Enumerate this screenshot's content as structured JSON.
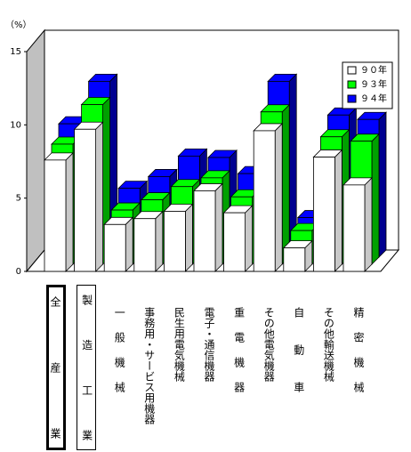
{
  "chart_data": {
    "type": "bar3d",
    "y_unit_label": "（%）",
    "categories": [
      "全産業",
      "製造工業",
      "一般機械",
      "事務用・サービス用機器",
      "民生用電気機械",
      "電子・通信機器",
      "重電機器",
      "その他電気機器",
      "自動車",
      "その他輸送機械",
      "精密機械"
    ],
    "series": [
      {
        "name": "９０年",
        "color": "#ffffff",
        "values": [
          7.6,
          9.7,
          3.2,
          3.6,
          4.1,
          5.5,
          4.0,
          9.6,
          1.6,
          7.8,
          5.9
        ]
      },
      {
        "name": "９３年",
        "color": "#00ff00",
        "values": [
          8.2,
          10.9,
          3.7,
          4.4,
          5.3,
          5.9,
          4.6,
          10.4,
          2.3,
          8.7,
          8.4
        ]
      },
      {
        "name": "９４年",
        "color": "#0000ff",
        "values": [
          9.1,
          12.0,
          4.7,
          5.5,
          6.9,
          6.8,
          5.7,
          12.0,
          2.7,
          9.7,
          9.4
        ]
      }
    ],
    "ylim": [
      0,
      15
    ],
    "yticks": [
      0,
      5,
      10,
      15
    ],
    "legend": "upper-right"
  }
}
